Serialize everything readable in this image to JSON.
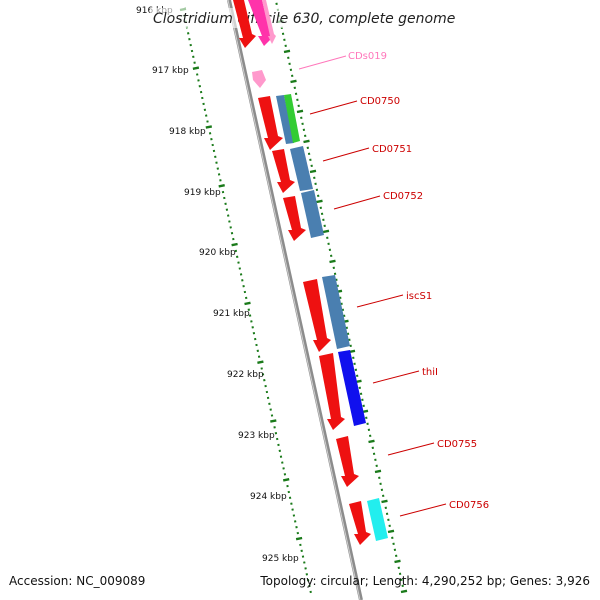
{
  "title": "Clostridium difficile 630, complete genome",
  "footer": {
    "accession": "Accession: NC_009089",
    "topology": "Topology: circular; Length: 4,290,252 bp; Genes: 3,926"
  },
  "colors": {
    "backbone": "#8c8c8c",
    "tick": "#1a7a1a",
    "label_red": "#cc0000",
    "label_pink": "#ff77bb",
    "gene_red": "#ee1111",
    "gene_magenta": "#ff33aa",
    "gene_pink": "#ff99cc",
    "gene_steel": "#4a7fb0",
    "gene_green": "#33cc33",
    "gene_blue": "#1010ee",
    "gene_cyan": "#22eeee"
  },
  "kbp_labels": [
    "916 kbp",
    "917 kbp",
    "918 kbp",
    "919 kbp",
    "920 kbp",
    "921 kbp",
    "922 kbp",
    "923 kbp",
    "924 kbp",
    "925 kbp"
  ],
  "gene_labels": [
    {
      "name": "CDs019",
      "color": "#ff77bb"
    },
    {
      "name": "CD0750",
      "color": "#cc0000"
    },
    {
      "name": "CD0751",
      "color": "#cc0000"
    },
    {
      "name": "CD0752",
      "color": "#cc0000"
    },
    {
      "name": "iscS1",
      "color": "#cc0000"
    },
    {
      "name": "thiI",
      "color": "#cc0000"
    },
    {
      "name": "CD0755",
      "color": "#cc0000"
    },
    {
      "name": "CD0756",
      "color": "#cc0000"
    }
  ]
}
